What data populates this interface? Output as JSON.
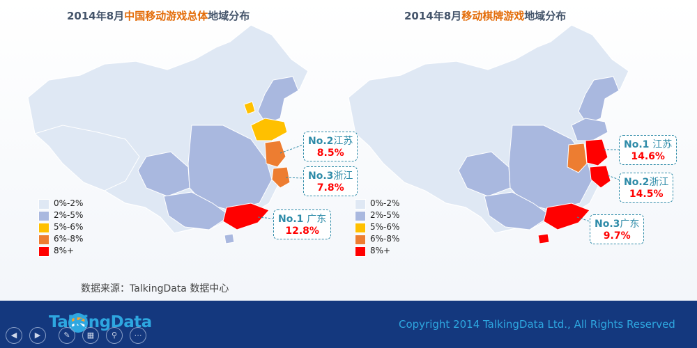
{
  "colors": {
    "land": "#dfe8f4",
    "tier_0_2": "#dfe8f4",
    "tier_2_5": "#a9b8df",
    "tier_5_6": "#ffc000",
    "tier_6_8": "#ed7d31",
    "tier_8_plus": "#ff0000",
    "footer": "#14387e",
    "brand": "#2ea7e0",
    "callout_border": "#2e8ba8"
  },
  "left_map": {
    "title_pre": "2014年8月",
    "title_hl": "中国移动游戏总体",
    "title_post": "地域分布",
    "callouts": [
      {
        "rank": "No.2",
        "province": "江苏",
        "pct": "8.5%"
      },
      {
        "rank": "No.3",
        "province": "浙江",
        "pct": "7.8%"
      },
      {
        "rank": "No.1 ",
        "province": "广东",
        "pct": "12.8%"
      }
    ]
  },
  "right_map": {
    "title_pre": "2014年8月",
    "title_hl": "移动棋牌游戏",
    "title_post": "地域分布",
    "callouts": [
      {
        "rank": "No.1 ",
        "province": "江苏",
        "pct": "14.6%"
      },
      {
        "rank": "No.2",
        "province": "浙江",
        "pct": "14.5%"
      },
      {
        "rank": "No.3",
        "province": "广东",
        "pct": "9.7%"
      }
    ]
  },
  "legend": [
    {
      "label": "0%-2%",
      "color": "#dfe8f4"
    },
    {
      "label": "2%-5%",
      "color": "#a9b8df"
    },
    {
      "label": "5%-6%",
      "color": "#ffc000"
    },
    {
      "label": "6%-8%",
      "color": "#ed7d31"
    },
    {
      "label": "8%+",
      "color": "#ff0000"
    }
  ],
  "source": "数据来源：TalkingData 数据中心",
  "footer": {
    "logo_text": "TalkingData",
    "copyright": "Copyright 2014 TalkingData Ltd., All Rights Reserved"
  },
  "nav_icons": [
    "prev-icon",
    "next-icon",
    "pen-icon",
    "slides-icon",
    "zoom-icon",
    "more-icon"
  ]
}
